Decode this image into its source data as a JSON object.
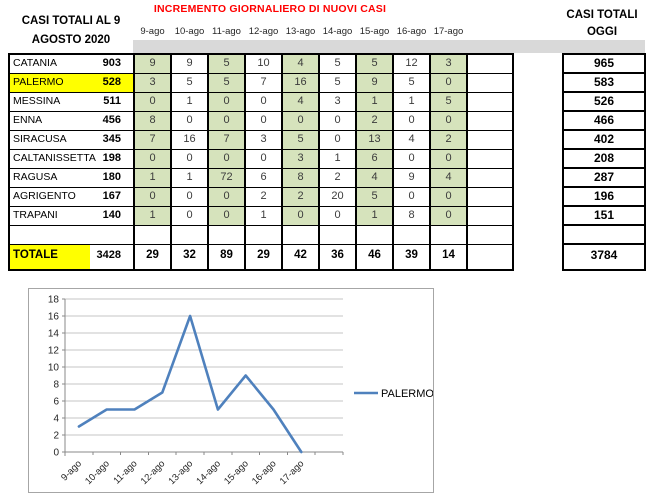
{
  "header": {
    "left_title_line1": "CASI TOTALI AL 9",
    "left_title_line2": "AGOSTO 2020",
    "main_title": "INCREMENTO GIORNALIERO DI NUOVI CASI",
    "right_title_line1": "CASI TOTALI",
    "right_title_line2": "OGGI"
  },
  "dates": [
    "9-ago",
    "10-ago",
    "11-ago",
    "12-ago",
    "13-ago",
    "14-ago",
    "15-ago",
    "16-ago",
    "17-ago"
  ],
  "rows": [
    {
      "name": "CATANIA",
      "total": 903,
      "daily": [
        9,
        9,
        5,
        10,
        4,
        5,
        5,
        12,
        3
      ],
      "today": 965,
      "highlight": false
    },
    {
      "name": "PALERMO",
      "total": 528,
      "daily": [
        3,
        5,
        5,
        7,
        16,
        5,
        9,
        5,
        0
      ],
      "today": 583,
      "highlight": true
    },
    {
      "name": "MESSINA",
      "total": 511,
      "daily": [
        0,
        1,
        0,
        0,
        4,
        3,
        1,
        1,
        5
      ],
      "today": 526,
      "highlight": false
    },
    {
      "name": "ENNA",
      "total": 456,
      "daily": [
        8,
        0,
        0,
        0,
        0,
        0,
        2,
        0,
        0
      ],
      "today": 466,
      "highlight": false
    },
    {
      "name": "SIRACUSA",
      "total": 345,
      "daily": [
        7,
        16,
        7,
        3,
        5,
        0,
        13,
        4,
        2
      ],
      "today": 402,
      "highlight": false
    },
    {
      "name": "CALTANISSETTA",
      "total": 198,
      "daily": [
        0,
        0,
        0,
        0,
        3,
        1,
        6,
        0,
        0
      ],
      "today": 208,
      "highlight": false
    },
    {
      "name": "RAGUSA",
      "total": 180,
      "daily": [
        1,
        1,
        72,
        6,
        8,
        2,
        4,
        9,
        4
      ],
      "today": 287,
      "highlight": false
    },
    {
      "name": "AGRIGENTO",
      "total": 167,
      "daily": [
        0,
        0,
        0,
        2,
        2,
        20,
        5,
        0,
        0
      ],
      "today": 196,
      "highlight": false
    },
    {
      "name": "TRAPANI",
      "total": 140,
      "daily": [
        1,
        0,
        0,
        1,
        0,
        0,
        1,
        8,
        0
      ],
      "today": 151,
      "highlight": false
    }
  ],
  "totale": {
    "label": "TOTALE",
    "total": 3428,
    "daily": [
      29,
      32,
      89,
      29,
      42,
      36,
      46,
      39,
      14
    ],
    "today": 3784
  },
  "colors": {
    "green_cell": "#D6E3BC",
    "yellow_highlight": "#FFFF00",
    "gray_strip": "#D9D9D9",
    "title_red": "#FF0000",
    "line_blue": "#4F81BD"
  },
  "chart_data": {
    "type": "line",
    "title": "",
    "xlabel": "",
    "ylabel": "",
    "x": [
      "9-ago",
      "10-ago",
      "11-ago",
      "12-ago",
      "13-ago",
      "14-ago",
      "15-ago",
      "16-ago",
      "17-ago"
    ],
    "series": [
      {
        "name": "PALERMO",
        "values": [
          3,
          5,
          5,
          7,
          16,
          5,
          9,
          5,
          0
        ],
        "color": "#4F81BD"
      }
    ],
    "ylim": [
      0,
      18
    ],
    "ytick_step": 2,
    "grid": true,
    "legend_position": "right"
  }
}
